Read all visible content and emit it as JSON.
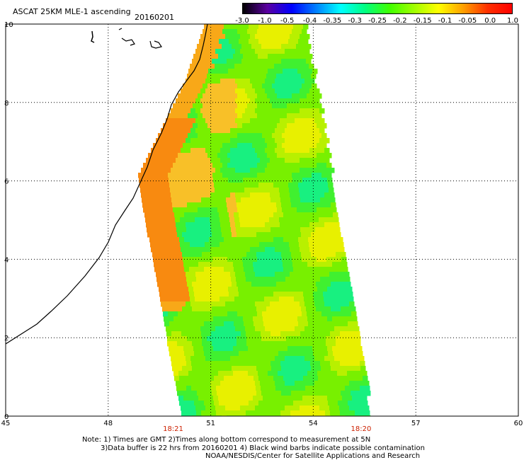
{
  "header": {
    "title": "ASCAT 25KM MLE-1 ascending",
    "date": "20160201"
  },
  "colorbar": {
    "labels": [
      "-3.0",
      "-1.0",
      "-0.5",
      "-0.4",
      "-0.35",
      "-0.3",
      "-0.25",
      "-0.2",
      "-0.15",
      "-0.1",
      "-0.05",
      "0.0",
      "1.0"
    ],
    "colors": [
      "#000000",
      "#5a00a0",
      "#0000ff",
      "#0080ff",
      "#00ffff",
      "#00ff80",
      "#40ff00",
      "#a0ff00",
      "#ffff00",
      "#ffa000",
      "#ff3000",
      "#ff0000"
    ]
  },
  "axes": {
    "x_ticks": [
      "45",
      "48",
      "51",
      "54",
      "57",
      "60"
    ],
    "y_ticks": [
      "0",
      "2",
      "4",
      "6",
      "8",
      "10"
    ],
    "lon_range": [
      45,
      60
    ],
    "lat_range": [
      0,
      10
    ]
  },
  "times": [
    "18:21",
    "18:20"
  ],
  "notes": {
    "line1": "Note: 1) Times are GMT 2)Times along bottom correspond to measurement at 5N",
    "line2": "3)Data buffer is 22 hrs from 20160201 4) Black wind barbs indicate possible contamination",
    "line3": "NOAA/NESDIS/Center for Satellite Applications and Research"
  }
}
